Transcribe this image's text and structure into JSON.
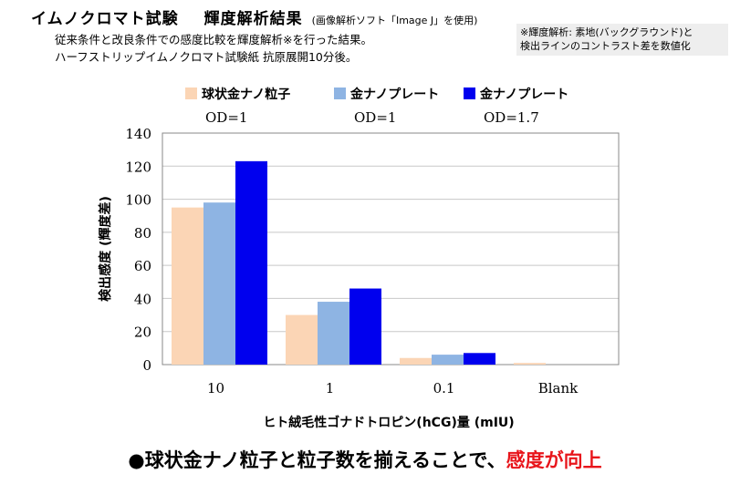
{
  "header": {
    "title": "イムノクロマト試験",
    "title2": "輝度解析結果",
    "subtitle": "(画像解析ソフト「Image J」を使用)",
    "desc_line1": "従来条件と改良条件での感度比較を輝度解析※を行った結果。",
    "desc_line2": "ハーフストリップイムノクロマト試験紙 抗原展開10分後。",
    "note_line1": "※輝度解析: 素地(バックグラウンド)と",
    "note_line2": "検出ラインのコントラスト差を数値化"
  },
  "chart_data": {
    "type": "bar",
    "categories": [
      "10",
      "1",
      "0.1",
      "Blank"
    ],
    "series": [
      {
        "name": "球状金ナノ粒子",
        "sublabel": "OD=1",
        "color": "#fbd5b5",
        "values": [
          95,
          30,
          4,
          1
        ]
      },
      {
        "name": "金ナノプレート",
        "sublabel": "OD=1",
        "color": "#8eb4e3",
        "values": [
          98,
          38,
          6,
          0
        ]
      },
      {
        "name": "金ナノプレート",
        "sublabel": "OD=1.7",
        "color": "#0000ee",
        "values": [
          123,
          46,
          7,
          0
        ]
      }
    ],
    "xlabel": "ヒト絨毛性ゴナドトロピン(hCG)量 (mIU)",
    "ylabel": "検出感度 (輝度差)",
    "ylim": [
      0,
      140
    ],
    "yticks": [
      "0",
      "20",
      "40",
      "60",
      "80",
      "100",
      "120",
      "140"
    ],
    "grid": true,
    "legend_position": "top"
  },
  "conclusion": {
    "text": "●球状金ナノ粒子と粒子数を揃えることで、",
    "highlight": "感度が向上",
    "highlight_color": "#e8151b"
  }
}
